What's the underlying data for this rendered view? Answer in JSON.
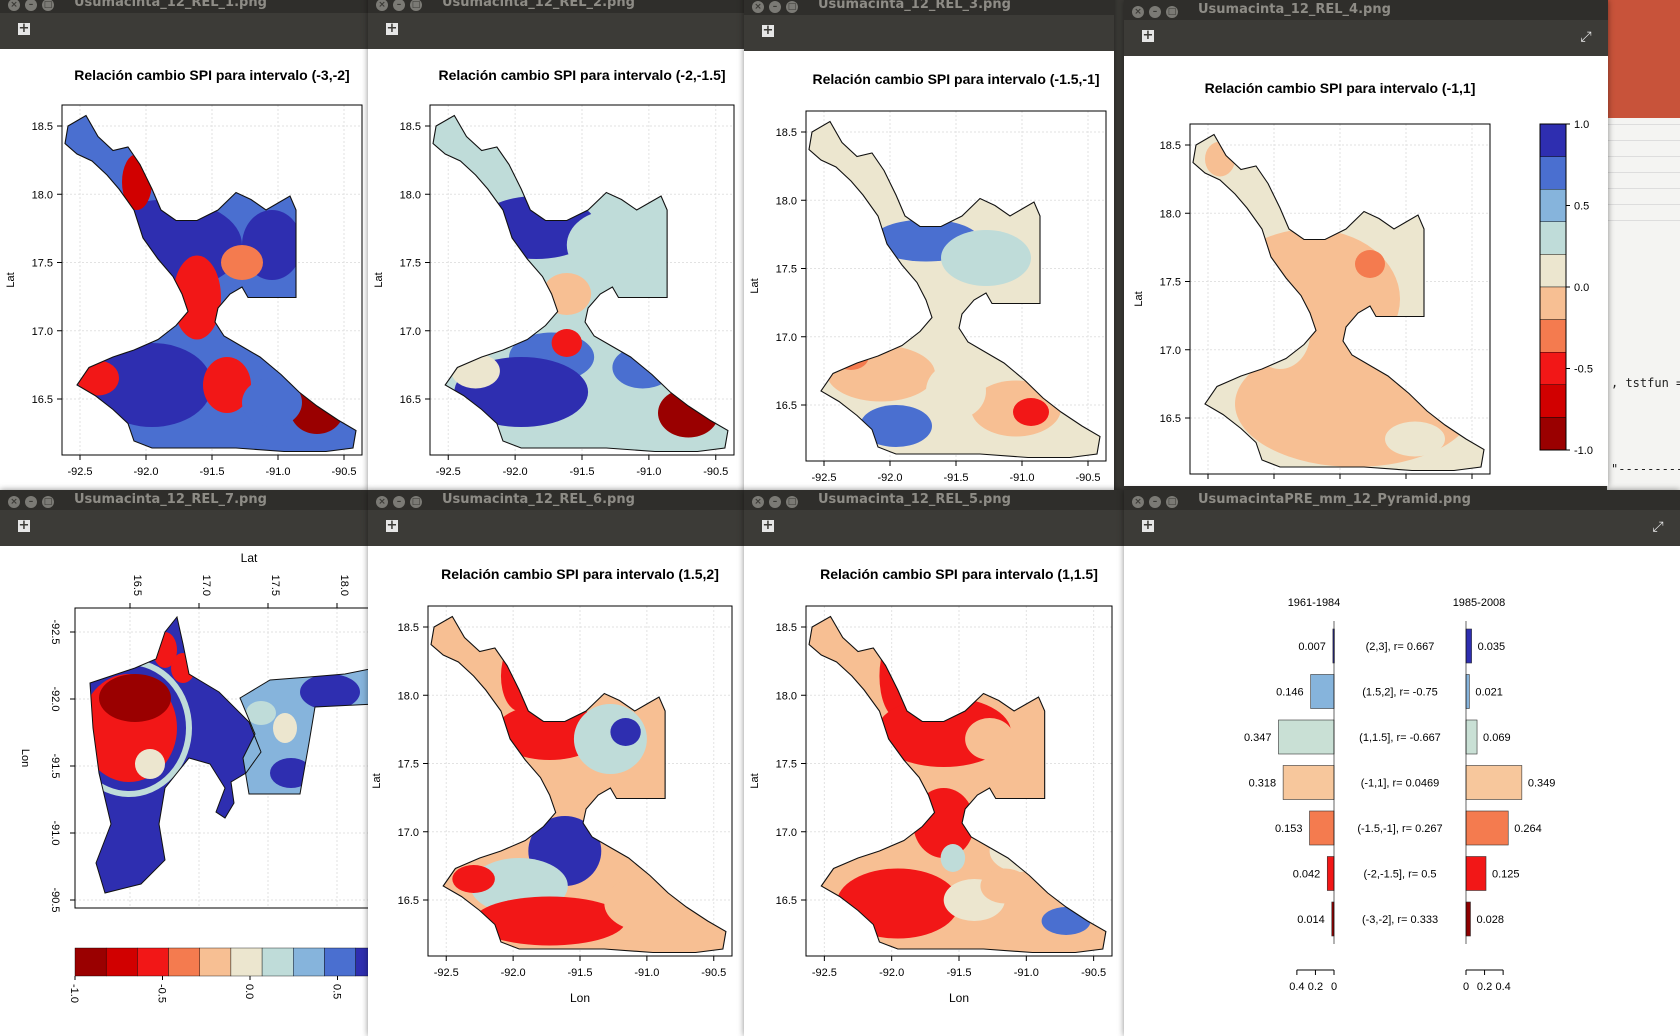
{
  "app": {
    "right_code": ", tstfun =",
    "right_dash": "\"----------"
  },
  "windows": [
    {
      "id": "w1",
      "title": "Usumacinta_12_REL_1.png",
      "plot": {
        "title": "Relación cambio SPI para intervalo (-3,-2]",
        "ylabel": "Lat",
        "xlabel": "",
        "yticks": [
          "18.5",
          "18.0",
          "17.5",
          "17.0",
          "16.5"
        ],
        "xticks": [
          "-92.5",
          "-92.0",
          "-91.5",
          "-91.0",
          "-90.5"
        ]
      }
    },
    {
      "id": "w2",
      "title": "Usumacinta_12_REL_2.png",
      "plot": {
        "title": "Relación cambio SPI para intervalo (-2,-1.5]",
        "ylabel": "Lat",
        "xlabel": "",
        "yticks": [
          "18.5",
          "18.0",
          "17.5",
          "17.0",
          "16.5"
        ],
        "xticks": [
          "-92.5",
          "-92.0",
          "-91.5",
          "-91.0",
          "-90.5"
        ]
      }
    },
    {
      "id": "w3",
      "title": "Usumacinta_12_REL_3.png",
      "plot": {
        "title": "Relación cambio SPI para intervalo (-1.5,-1]",
        "ylabel": "Lat",
        "xlabel": "",
        "yticks": [
          "18.5",
          "18.0",
          "17.5",
          "17.0",
          "16.5"
        ],
        "xticks": [
          "-92.5",
          "-92.0",
          "-91.5",
          "-91.0",
          "-90.5"
        ]
      }
    },
    {
      "id": "w4",
      "title": "Usumacinta_12_REL_4.png",
      "plot": {
        "title": "Relación cambio SPI para intervalo (-1,1]",
        "ylabel": "Lat",
        "xlabel": "",
        "yticks": [
          "18.5",
          "18.0",
          "17.5",
          "17.0",
          "16.5"
        ],
        "xticks": []
      },
      "colorbar": {
        "labels": [
          "1.0",
          "0.5",
          "0.0",
          "-0.5",
          "-1.0"
        ]
      }
    },
    {
      "id": "w5",
      "title": "Usumacinta_12_REL_7.png",
      "plot": {
        "title": "",
        "ylabel": "Lon",
        "xlabel": "Lat",
        "yticks": [
          "-92.5",
          "-92.0",
          "-91.5",
          "-91.0",
          "-90.5"
        ],
        "xticks": [
          "16.5",
          "17.0",
          "17.5",
          "18.0"
        ]
      },
      "colorbar": {
        "labels": [
          "-1.0",
          "-0.5",
          "0.0",
          "0.5"
        ]
      }
    },
    {
      "id": "w6",
      "title": "Usumacinta_12_REL_6.png",
      "plot": {
        "title": "Relación cambio SPI para intervalo (1.5,2]",
        "ylabel": "Lat",
        "xlabel": "Lon",
        "yticks": [
          "18.5",
          "18.0",
          "17.5",
          "17.0",
          "16.5"
        ],
        "xticks": [
          "-92.5",
          "-92.0",
          "-91.5",
          "-91.0",
          "-90.5"
        ]
      }
    },
    {
      "id": "w7",
      "title": "Usumacinta_12_REL_5.png",
      "plot": {
        "title": "Relación cambio SPI para intervalo (1,1.5]",
        "ylabel": "Lat",
        "xlabel": "Lon",
        "yticks": [
          "18.5",
          "18.0",
          "17.5",
          "17.0",
          "16.5"
        ],
        "xticks": [
          "-92.5",
          "-92.0",
          "-91.5",
          "-91.0",
          "-90.5"
        ]
      }
    },
    {
      "id": "w8",
      "title": "UsumacintaPRE_mm_12_Pyramid.png"
    }
  ],
  "palette": [
    "#2e2eb0",
    "#4a6fd0",
    "#86b4dc",
    "#bfdcd9",
    "#ece6cf",
    "#f7bf93",
    "#f47b4f",
    "#f21717",
    "#d10000",
    "#9a0000"
  ],
  "chart_data": {
    "type": "bar",
    "left_title": "1961-1984",
    "right_title": "1985-2008",
    "categories": [
      "(2,3], r= 0.667",
      "(1.5,2], r= -0.75",
      "(1,1.5], r= -0.667",
      "(-1,1], r= 0.0469",
      "(-1.5,-1], r= 0.267",
      "(-2,-1.5], r= 0.5",
      "(-3,-2], r= 0.333"
    ],
    "left_values": [
      0.007,
      0.146,
      0.347,
      0.318,
      0.153,
      0.042,
      0.014
    ],
    "right_values": [
      0.035,
      0.021,
      0.069,
      0.349,
      0.264,
      0.125,
      0.028
    ],
    "left_axis_ticks": [
      "0.4",
      "0.2",
      "0"
    ],
    "right_axis_ticks": [
      "0",
      "0.2",
      "0.4"
    ],
    "xlim": [
      0,
      0.4
    ],
    "colors": [
      "#2e2eb0",
      "#86b4dc",
      "#c9e0d5",
      "#f7c79c",
      "#f47b4f",
      "#f21717",
      "#8e0000"
    ]
  }
}
